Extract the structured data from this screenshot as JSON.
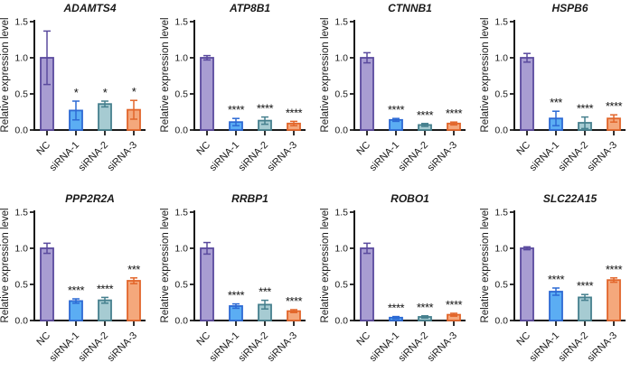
{
  "figure": {
    "description": "siRNA knockdown qPCR bar chart grid",
    "rows": 2,
    "cols": 4,
    "background": "#ffffff",
    "axis_color": "#1a1a1a",
    "star_color": "#111111",
    "bar_fills": [
      "#a89dd2",
      "#5badf3",
      "#a6cbd2",
      "#f4a87c"
    ],
    "bar_strokes": [
      "#5a4a9e",
      "#2d6ad4",
      "#46808e",
      "#e2662b"
    ]
  },
  "chart_data": [
    {
      "type": "bar",
      "title": "ADAMTS4",
      "categories": [
        "NC",
        "siRNA-1",
        "siRNA-2",
        "siRNA-3"
      ],
      "values": [
        1.0,
        0.27,
        0.36,
        0.28
      ],
      "errors": [
        0.37,
        0.13,
        0.04,
        0.13
      ],
      "significance": [
        "",
        "*",
        "*",
        "*"
      ],
      "xlabel": "",
      "ylabel": "Relative expression level",
      "ylim": [
        0,
        1.5
      ],
      "yticks": [
        0.0,
        0.5,
        1.0,
        1.5
      ],
      "grid": false,
      "legend": "none"
    },
    {
      "type": "bar",
      "title": "ATP8B1",
      "categories": [
        "NC",
        "siRNA-1",
        "siRNA-2",
        "siRNA-3"
      ],
      "values": [
        1.0,
        0.11,
        0.13,
        0.09
      ],
      "errors": [
        0.03,
        0.05,
        0.05,
        0.03
      ],
      "significance": [
        "",
        "****",
        "****",
        "****"
      ],
      "xlabel": "",
      "ylabel": "Relative expression level",
      "ylim": [
        0,
        1.5
      ],
      "yticks": [
        0.0,
        0.5,
        1.0,
        1.5
      ],
      "grid": false,
      "legend": "none"
    },
    {
      "type": "bar",
      "title": "CTNNB1",
      "categories": [
        "NC",
        "siRNA-1",
        "siRNA-2",
        "siRNA-3"
      ],
      "values": [
        1.0,
        0.14,
        0.07,
        0.09
      ],
      "errors": [
        0.07,
        0.02,
        0.02,
        0.02
      ],
      "significance": [
        "",
        "****",
        "****",
        "****"
      ],
      "xlabel": "",
      "ylabel": "Relative expression level",
      "ylim": [
        0,
        1.5
      ],
      "yticks": [
        0.0,
        0.5,
        1.0,
        1.5
      ],
      "grid": false,
      "legend": "none"
    },
    {
      "type": "bar",
      "title": "HSPB6",
      "categories": [
        "NC",
        "siRNA-1",
        "siRNA-2",
        "siRNA-3"
      ],
      "values": [
        1.0,
        0.16,
        0.1,
        0.16
      ],
      "errors": [
        0.06,
        0.1,
        0.08,
        0.05
      ],
      "significance": [
        "",
        "***",
        "****",
        "****"
      ],
      "xlabel": "",
      "ylabel": "Relative expression level",
      "ylim": [
        0,
        1.5
      ],
      "yticks": [
        0.0,
        0.5,
        1.0,
        1.5
      ],
      "grid": false,
      "legend": "none"
    },
    {
      "type": "bar",
      "title": "PPP2R2A",
      "categories": [
        "NC",
        "siRNA-1",
        "siRNA-2",
        "siRNA-3"
      ],
      "values": [
        1.0,
        0.27,
        0.28,
        0.55
      ],
      "errors": [
        0.07,
        0.03,
        0.04,
        0.04
      ],
      "significance": [
        "",
        "****",
        "****",
        "***"
      ],
      "xlabel": "",
      "ylabel": "Relative expression level",
      "ylim": [
        0,
        1.5
      ],
      "yticks": [
        0.0,
        0.5,
        1.0,
        1.5
      ],
      "grid": false,
      "legend": "none"
    },
    {
      "type": "bar",
      "title": "RRBP1",
      "categories": [
        "NC",
        "siRNA-1",
        "siRNA-2",
        "siRNA-3"
      ],
      "values": [
        1.0,
        0.2,
        0.22,
        0.13
      ],
      "errors": [
        0.08,
        0.03,
        0.06,
        0.02
      ],
      "significance": [
        "",
        "****",
        "***",
        "****"
      ],
      "xlabel": "",
      "ylabel": "Relative expression level",
      "ylim": [
        0,
        1.5
      ],
      "yticks": [
        0.0,
        0.5,
        1.0,
        1.5
      ],
      "grid": false,
      "legend": "none"
    },
    {
      "type": "bar",
      "title": "ROBO1",
      "categories": [
        "NC",
        "siRNA-1",
        "siRNA-2",
        "siRNA-3"
      ],
      "values": [
        1.0,
        0.04,
        0.05,
        0.08
      ],
      "errors": [
        0.07,
        0.015,
        0.015,
        0.02
      ],
      "significance": [
        "",
        "****",
        "****",
        "****"
      ],
      "xlabel": "",
      "ylabel": "Relative expression level",
      "ylim": [
        0,
        1.5
      ],
      "yticks": [
        0.0,
        0.5,
        1.0,
        1.5
      ],
      "grid": false,
      "legend": "none"
    },
    {
      "type": "bar",
      "title": "SLC22A15",
      "categories": [
        "NC",
        "siRNA-1",
        "siRNA-2",
        "siRNA-3"
      ],
      "values": [
        1.0,
        0.4,
        0.32,
        0.56
      ],
      "errors": [
        0.02,
        0.05,
        0.04,
        0.03
      ],
      "significance": [
        "",
        "****",
        "****",
        "****"
      ],
      "xlabel": "",
      "ylabel": "Relative expression level",
      "ylim": [
        0,
        1.5
      ],
      "yticks": [
        0.0,
        0.5,
        1.0,
        1.5
      ],
      "grid": false,
      "legend": "none"
    }
  ]
}
